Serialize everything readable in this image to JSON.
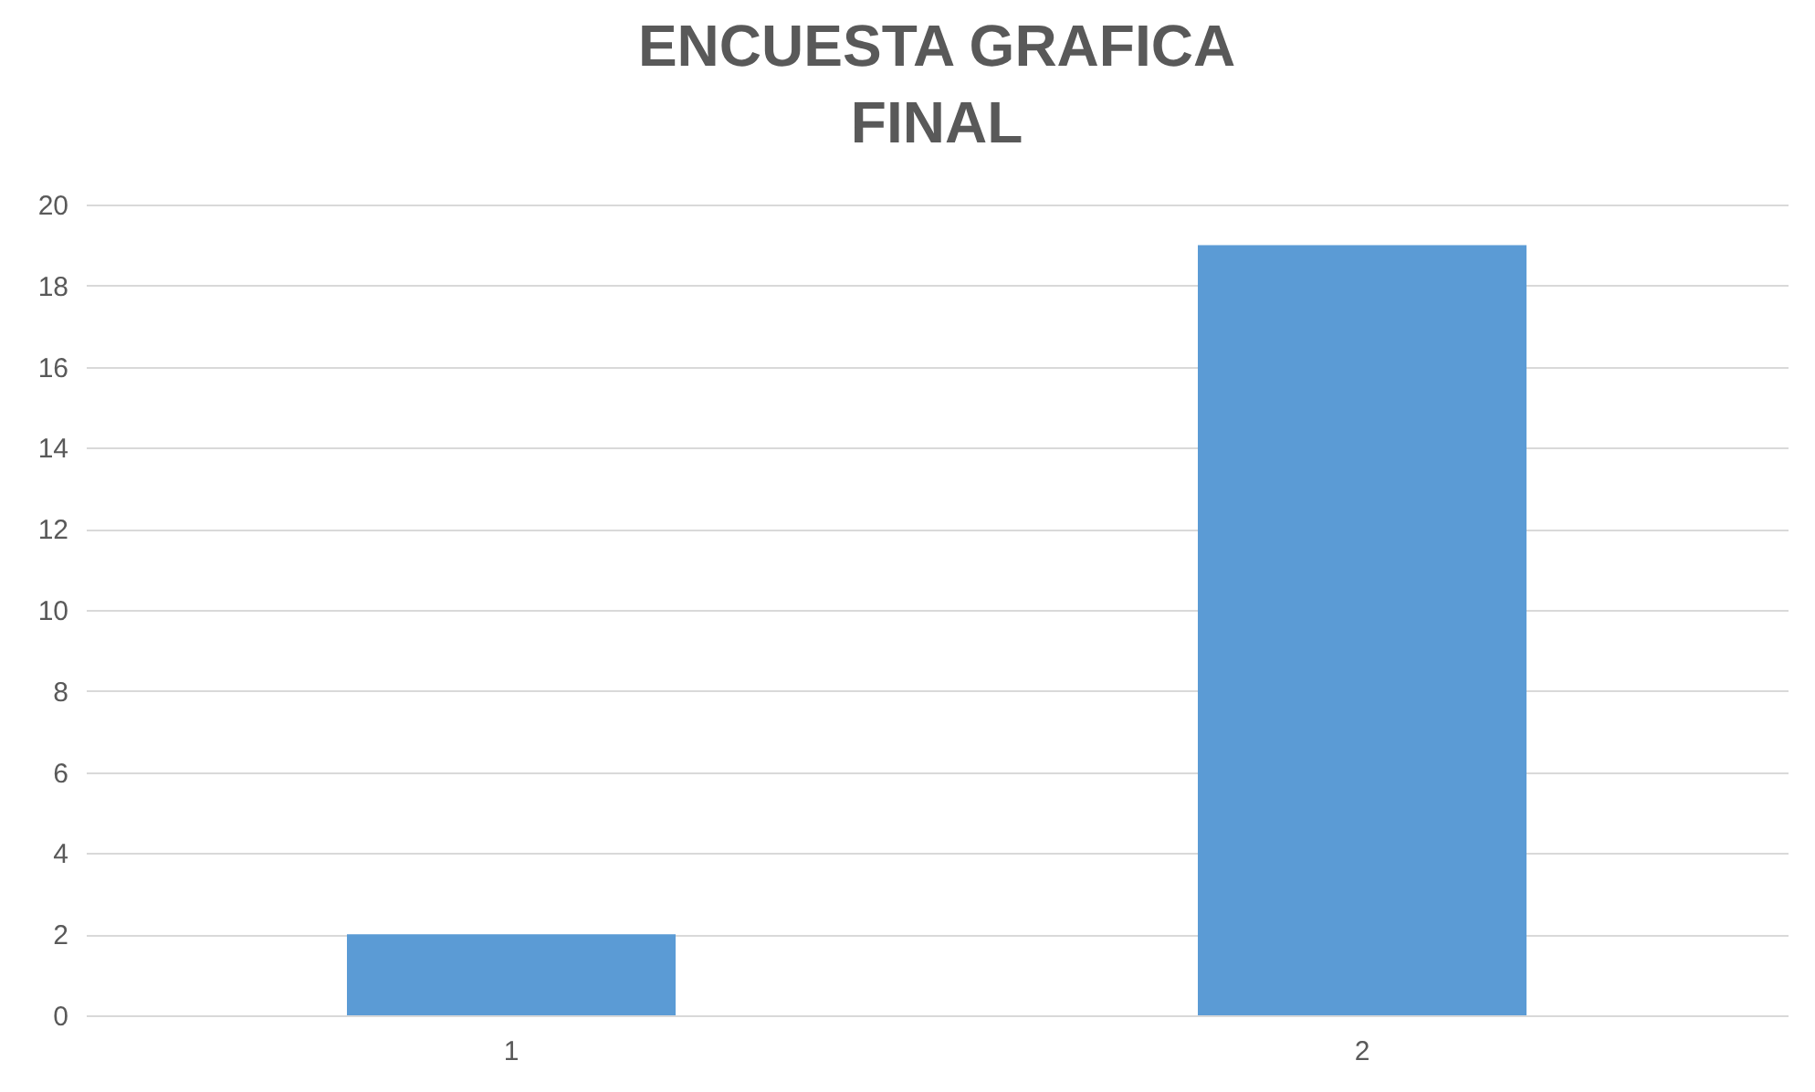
{
  "chart_data": {
    "type": "bar",
    "title": "ENCUESTA GRAFICA FINAL",
    "categories": [
      "1",
      "2"
    ],
    "values": [
      2,
      19
    ],
    "color": "#5b9bd5",
    "ylim": [
      0,
      20
    ],
    "yticks": [
      0,
      2,
      4,
      6,
      8,
      10,
      12,
      14,
      16,
      18,
      20
    ],
    "grid": "y"
  }
}
